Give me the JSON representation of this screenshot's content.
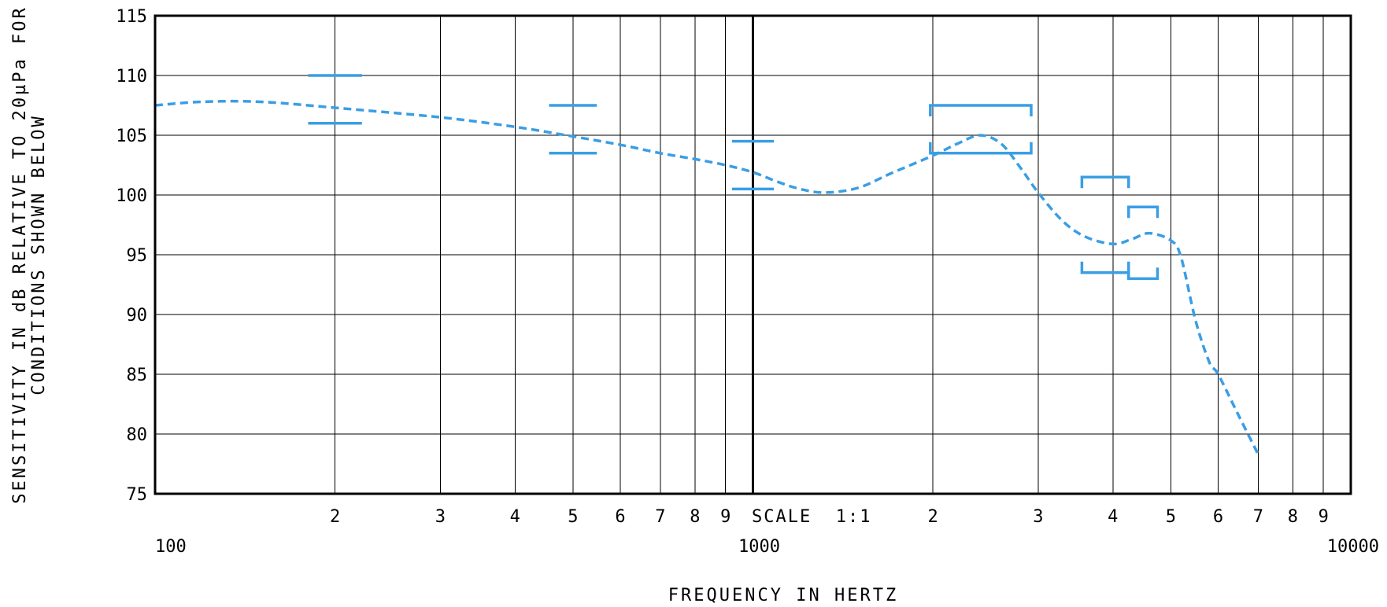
{
  "chart_data": {
    "type": "line",
    "x_scale": "log",
    "xlabel": "FREQUENCY IN HERTZ",
    "ylabel_lines": [
      "SENSITIVITY IN dB RELATIVE TO 20µPa FOR",
      "CONDITIONS SHOWN BELOW"
    ],
    "annotation": "SCALE  1:1",
    "xlim": [
      100,
      10000
    ],
    "ylim": [
      75,
      115
    ],
    "grid": true,
    "x_decade_labels": [
      {
        "value": 100,
        "label": "100"
      },
      {
        "value": 1000,
        "label": "1000"
      },
      {
        "value": 10000,
        "label": "10000"
      }
    ],
    "x_minor_labels": [
      {
        "value": 200,
        "label": "2"
      },
      {
        "value": 300,
        "label": "3"
      },
      {
        "value": 400,
        "label": "4"
      },
      {
        "value": 500,
        "label": "5"
      },
      {
        "value": 600,
        "label": "6"
      },
      {
        "value": 700,
        "label": "7"
      },
      {
        "value": 800,
        "label": "8"
      },
      {
        "value": 900,
        "label": "9"
      },
      {
        "value": 2000,
        "label": "2"
      },
      {
        "value": 3000,
        "label": "3"
      },
      {
        "value": 4000,
        "label": "4"
      },
      {
        "value": 5000,
        "label": "5"
      },
      {
        "value": 6000,
        "label": "6"
      },
      {
        "value": 7000,
        "label": "7"
      },
      {
        "value": 8000,
        "label": "8"
      },
      {
        "value": 9000,
        "label": "9"
      }
    ],
    "y_ticks": [
      75,
      80,
      85,
      90,
      95,
      100,
      105,
      110,
      115
    ],
    "y_tick_labels": [
      "75",
      "80",
      "85",
      "90",
      "95",
      "100",
      "105",
      "110",
      "115"
    ],
    "series": [
      {
        "color": "#3a9ee4",
        "style": "dashed",
        "points": [
          {
            "x": 100,
            "y": 107.5
          },
          {
            "x": 120,
            "y": 107.8
          },
          {
            "x": 150,
            "y": 107.8
          },
          {
            "x": 200,
            "y": 107.3
          },
          {
            "x": 300,
            "y": 106.5
          },
          {
            "x": 400,
            "y": 105.7
          },
          {
            "x": 500,
            "y": 104.9
          },
          {
            "x": 600,
            "y": 104.2
          },
          {
            "x": 700,
            "y": 103.5
          },
          {
            "x": 800,
            "y": 103.0
          },
          {
            "x": 900,
            "y": 102.5
          },
          {
            "x": 1000,
            "y": 101.9
          },
          {
            "x": 1100,
            "y": 101.1
          },
          {
            "x": 1200,
            "y": 100.5
          },
          {
            "x": 1320,
            "y": 100.2
          },
          {
            "x": 1500,
            "y": 100.6
          },
          {
            "x": 1700,
            "y": 101.8
          },
          {
            "x": 2000,
            "y": 103.3
          },
          {
            "x": 2200,
            "y": 104.3
          },
          {
            "x": 2400,
            "y": 105.0
          },
          {
            "x": 2600,
            "y": 104.3
          },
          {
            "x": 2800,
            "y": 102.3
          },
          {
            "x": 3000,
            "y": 100.2
          },
          {
            "x": 3300,
            "y": 97.8
          },
          {
            "x": 3600,
            "y": 96.5
          },
          {
            "x": 4000,
            "y": 95.9
          },
          {
            "x": 4300,
            "y": 96.3
          },
          {
            "x": 4600,
            "y": 96.8
          },
          {
            "x": 5000,
            "y": 96.2
          },
          {
            "x": 5200,
            "y": 94.8
          },
          {
            "x": 5500,
            "y": 89.5
          },
          {
            "x": 5800,
            "y": 86.0
          },
          {
            "x": 6000,
            "y": 85.0
          },
          {
            "x": 6500,
            "y": 81.5
          },
          {
            "x": 7000,
            "y": 78.3
          }
        ]
      }
    ],
    "tolerance_marks": [
      {
        "type": "bar",
        "x": 200,
        "x_half_span": 0.045,
        "upper": 110,
        "lower": 106
      },
      {
        "type": "bar",
        "x": 500,
        "x_half_span": 0.04,
        "upper": 107.5,
        "lower": 103.5
      },
      {
        "type": "bar",
        "x": 1000,
        "x_half_span": 0.035,
        "upper": 104.5,
        "lower": 100.5
      },
      {
        "type": "bracket",
        "x_from": 1980,
        "x_to": 2920,
        "upper": 107.5,
        "lower": 103.5
      },
      {
        "type": "bracket",
        "x_from": 3550,
        "x_to": 4250,
        "upper": 101.5,
        "lower": 93.5
      },
      {
        "type": "bracket",
        "x_from": 4250,
        "x_to": 4750,
        "upper": 99,
        "lower": 93
      }
    ],
    "colors": {
      "series": "#3a9ee4",
      "tolerance": "#3a9ee4",
      "grid": "#000000"
    }
  }
}
